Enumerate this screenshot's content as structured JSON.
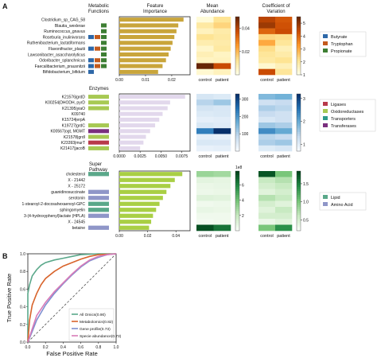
{
  "panel_a_label": "A",
  "panel_b_label": "B",
  "col_headers": {
    "functions": "Metabolic\nFunctions",
    "importance": "Feature\nImportance",
    "abundance": "Mean\nAbundance",
    "cv": "Coefficient of\nVariation"
  },
  "section_labels": [
    "Enzymes",
    "Super\nPathway"
  ],
  "colors": {
    "bar_species": "#c9a53b",
    "bar_enzymes": "#e2d8ec",
    "bar_pathway": "#a9cf44",
    "Butyrate": "#2e68a8",
    "Tryptophan": "#c45a1d",
    "Propionate": "#3d7e33",
    "Ligases": "#b83a4a",
    "Oxidoreductases": "#a7c953",
    "Transporters": "#2f9a8a",
    "Transferases": "#7a2f7e",
    "Lipid": "#5aa88a",
    "Amino Acid": "#8f96c8",
    "roc_all": "#5aa88a",
    "roc_metab": "#d8642c",
    "roc_gene": "#7e8fd0",
    "roc_species": "#d97bb8"
  },
  "chart_data": [
    {
      "type": "bar",
      "orientation": "horizontal",
      "title": "Feature Importance",
      "categories": [
        "Clostridium_sp_CAG_58",
        "Blautia_wexlerae",
        "Ruminococcus_gnavus",
        "Roseburia_inulinivorans",
        "Ruthenibacterium_lactatiformans",
        "Flavonifractor_plautii",
        "Lawsonibacter_asaccharolyticus",
        "Odoribacter_splanchnicus",
        "Faecalibacterium_prausnitzii",
        "Bifidobacterium_bifidum"
      ],
      "values": [
        0.0245,
        0.0225,
        0.0218,
        0.021,
        0.0203,
        0.0196,
        0.0188,
        0.0178,
        0.0165,
        0.0148
      ],
      "xlim": [
        0,
        0.027
      ],
      "xticks": [
        "0.00",
        "0.01",
        "0.02"
      ],
      "function_tags": [
        [],
        [
          "Propionate"
        ],
        [
          "Propionate"
        ],
        [
          "Butyrate",
          "Tryptophan",
          "Propionate"
        ],
        [
          "Propionate"
        ],
        [
          "Butyrate",
          "Tryptophan",
          "Propionate"
        ],
        [
          "Propionate"
        ],
        [
          "Butyrate",
          "Tryptophan",
          "Propionate"
        ],
        [
          "Butyrate",
          "Tryptophan",
          "Propionate"
        ],
        [
          "Butyrate"
        ]
      ]
    },
    {
      "type": "heatmap",
      "title": "Mean Abundance",
      "columns": [
        "control",
        "patient"
      ],
      "colormap": "YlOrBr",
      "range": [
        0,
        0.05
      ],
      "colorbar_ticks": [
        "0.04",
        "0.02"
      ],
      "values": [
        [
          0.002,
          0.012
        ],
        [
          0.01,
          0.015
        ],
        [
          0.006,
          0.009
        ],
        [
          0.012,
          0.01
        ],
        [
          0.008,
          0.009
        ],
        [
          0.004,
          0.01
        ],
        [
          0.007,
          0.005
        ],
        [
          0.005,
          0.006
        ],
        [
          0.052,
          0.038
        ],
        [
          0.003,
          0.006
        ]
      ]
    },
    {
      "type": "heatmap",
      "title": "Coefficient of Variation",
      "columns": [
        "control",
        "patient"
      ],
      "colormap": "YlOrBr",
      "range": [
        1,
        5.5
      ],
      "colorbar_ticks": [
        "5",
        "4",
        "3",
        "2",
        "1"
      ],
      "values": [
        [
          4.6,
          4.2
        ],
        [
          4.9,
          4.3
        ],
        [
          4.0,
          4.4
        ],
        [
          2.3,
          2.2
        ],
        [
          3.0,
          2.0
        ],
        [
          2.2,
          1.6
        ],
        [
          2.0,
          1.8
        ],
        [
          1.9,
          2.1
        ],
        [
          1.3,
          1.6
        ],
        [
          4.4,
          2.0
        ]
      ]
    },
    {
      "type": "bar",
      "orientation": "horizontal",
      "categories": [
        "K21576|grdD",
        "K00254|DHODH, pyrD",
        "K21395|yiaO",
        "K09740",
        "K15724|erpA",
        "K19727|grdC",
        "K00567|ogt, MGMT",
        "K21578|grdI",
        "K23393|murT",
        "K21417|jacoB"
      ],
      "values": [
        0.0079,
        0.0061,
        0.0058,
        0.0052,
        0.0048,
        0.0043,
        0.0037,
        0.0032,
        0.0029,
        0.0025
      ],
      "xlim": [
        0,
        0.0085
      ],
      "xticks": [
        "0.0000",
        "0.0025",
        "0.0050",
        "0.0075"
      ],
      "function_tags": [
        "Oxidoreductases",
        "Oxidoreductases",
        "Oxidoreductases",
        "",
        "",
        "Oxidoreductases",
        "Transferases",
        "Oxidoreductases",
        "Ligases",
        "Oxidoreductases"
      ]
    },
    {
      "type": "heatmap",
      "columns": [
        "control",
        "patient"
      ],
      "colormap": "Blues",
      "range": [
        0,
        330
      ],
      "colorbar_ticks": [
        "300",
        "200",
        "100"
      ],
      "values": [
        [
          55,
          45
        ],
        [
          95,
          120
        ],
        [
          60,
          52
        ],
        [
          45,
          50
        ],
        [
          30,
          35
        ],
        [
          50,
          40
        ],
        [
          230,
          330
        ],
        [
          30,
          25
        ],
        [
          50,
          48
        ],
        [
          25,
          30
        ]
      ]
    },
    {
      "type": "heatmap",
      "columns": [
        "control",
        "patient"
      ],
      "colormap": "Blues",
      "range": [
        0.7,
        3.2
      ],
      "colorbar_ticks": [
        "3",
        "2",
        "1"
      ],
      "values": [
        [
          1.8,
          1.9
        ],
        [
          1.2,
          1.3
        ],
        [
          1.5,
          1.4
        ],
        [
          1.3,
          1.2
        ],
        [
          1.1,
          1.2
        ],
        [
          1.6,
          1.5
        ],
        [
          2.3,
          2.0
        ],
        [
          1.4,
          1.3
        ],
        [
          1.5,
          1.6
        ],
        [
          1.0,
          1.1
        ]
      ]
    },
    {
      "type": "bar",
      "orientation": "horizontal",
      "categories": [
        "cholesterol",
        "X - 21442",
        "X - 25172",
        "guanidinosuccinate",
        "serotonin",
        "1-stearoyl-2-docosahexaenoyl-GPC",
        "sphingomyelin",
        "3-(4-hydroxyphenyl)lactate (HPLA)",
        "X - 24545",
        "betaine"
      ],
      "values": [
        0.0445,
        0.0392,
        0.0361,
        0.0333,
        0.0308,
        0.0284,
        0.026,
        0.0238,
        0.0225,
        0.021
      ],
      "xlim": [
        0,
        0.05
      ],
      "xticks": [
        "0.00",
        "0.02",
        "0.04"
      ],
      "function_tags": [
        "Lipid",
        "",
        "",
        "Amino Acid",
        "Amino Acid",
        "Lipid",
        "Lipid",
        "Amino Acid",
        "",
        "Amino Acid"
      ]
    },
    {
      "type": "heatmap",
      "columns": [
        "control",
        "patient"
      ],
      "colormap": "Greens",
      "range": [
        0,
        7.8
      ],
      "colorbar_label": "1e8",
      "colorbar_ticks": [
        "6",
        "4",
        "2"
      ],
      "values": [
        [
          3.0,
          2.8
        ],
        [
          0.8,
          0.7
        ],
        [
          0.5,
          0.6
        ],
        [
          0.4,
          0.5
        ],
        [
          1.0,
          0.9
        ],
        [
          0.3,
          0.4
        ],
        [
          0.6,
          0.5
        ],
        [
          0.3,
          0.3
        ],
        [
          0.2,
          0.3
        ],
        [
          7.5,
          6.5
        ]
      ]
    },
    {
      "type": "heatmap",
      "columns": [
        "control",
        "patient"
      ],
      "colormap": "Greens",
      "range": [
        0.2,
        1.85
      ],
      "colorbar_ticks": [
        "1.5",
        "1.0",
        "0.5"
      ],
      "values": [
        [
          1.75,
          1.0
        ],
        [
          0.6,
          0.7
        ],
        [
          0.5,
          0.6
        ],
        [
          0.4,
          0.5
        ],
        [
          0.7,
          0.6
        ],
        [
          0.5,
          0.4
        ],
        [
          0.4,
          0.6
        ],
        [
          0.5,
          0.5
        ],
        [
          0.3,
          0.4
        ],
        [
          1.0,
          1.4
        ]
      ]
    },
    {
      "type": "line",
      "title": "",
      "xlabel": "False Positive Rate",
      "ylabel": "True Positive Rate",
      "xlim": [
        0,
        1
      ],
      "ylim": [
        0,
        1
      ],
      "xticks": [
        "0.0",
        "0.2",
        "0.4",
        "0.6",
        "0.8",
        "1.0"
      ],
      "yticks": [
        "0.0",
        "0.2",
        "0.4",
        "0.6",
        "0.8",
        "1.0"
      ],
      "diagonal": true,
      "series": [
        {
          "name": "All Omics(0.90)",
          "color_key": "roc_all",
          "x": [
            0,
            0.0,
            0.02,
            0.05,
            0.1,
            0.15,
            0.2,
            0.3,
            0.4,
            0.5,
            0.6,
            0.8,
            1.0
          ],
          "y": [
            0,
            0.55,
            0.65,
            0.75,
            0.82,
            0.87,
            0.9,
            0.93,
            0.95,
            0.97,
            0.99,
            1.0,
            1.0
          ]
        },
        {
          "name": "Metabolomics(0.82)",
          "color_key": "roc_metab",
          "x": [
            0,
            0.02,
            0.05,
            0.1,
            0.15,
            0.2,
            0.3,
            0.4,
            0.5,
            0.6,
            0.7,
            0.8,
            1.0
          ],
          "y": [
            0,
            0.25,
            0.42,
            0.55,
            0.65,
            0.72,
            0.8,
            0.86,
            0.9,
            0.94,
            0.97,
            0.99,
            1.0
          ]
        },
        {
          "name": "Gene profile(0.73)",
          "color_key": "roc_gene",
          "x": [
            0,
            0.05,
            0.1,
            0.2,
            0.3,
            0.4,
            0.5,
            0.6,
            0.7,
            0.8,
            0.9,
            1.0
          ],
          "y": [
            0,
            0.12,
            0.25,
            0.42,
            0.55,
            0.66,
            0.76,
            0.85,
            0.92,
            0.96,
            0.99,
            1.0
          ]
        },
        {
          "name": "Specie abundance(0.73)",
          "color_key": "roc_species",
          "x": [
            0,
            0.05,
            0.1,
            0.2,
            0.3,
            0.4,
            0.5,
            0.6,
            0.7,
            0.8,
            0.9,
            1.0
          ],
          "y": [
            0,
            0.15,
            0.3,
            0.45,
            0.57,
            0.67,
            0.77,
            0.86,
            0.93,
            0.97,
            0.99,
            1.0
          ]
        }
      ]
    }
  ],
  "legends": [
    [
      "Butyrate",
      "Tryptophan",
      "Propionate"
    ],
    [
      "Ligases",
      "Oxidoreductases",
      "Transporters",
      "Transferases"
    ],
    [
      "Lipid",
      "Amino Acid"
    ]
  ]
}
